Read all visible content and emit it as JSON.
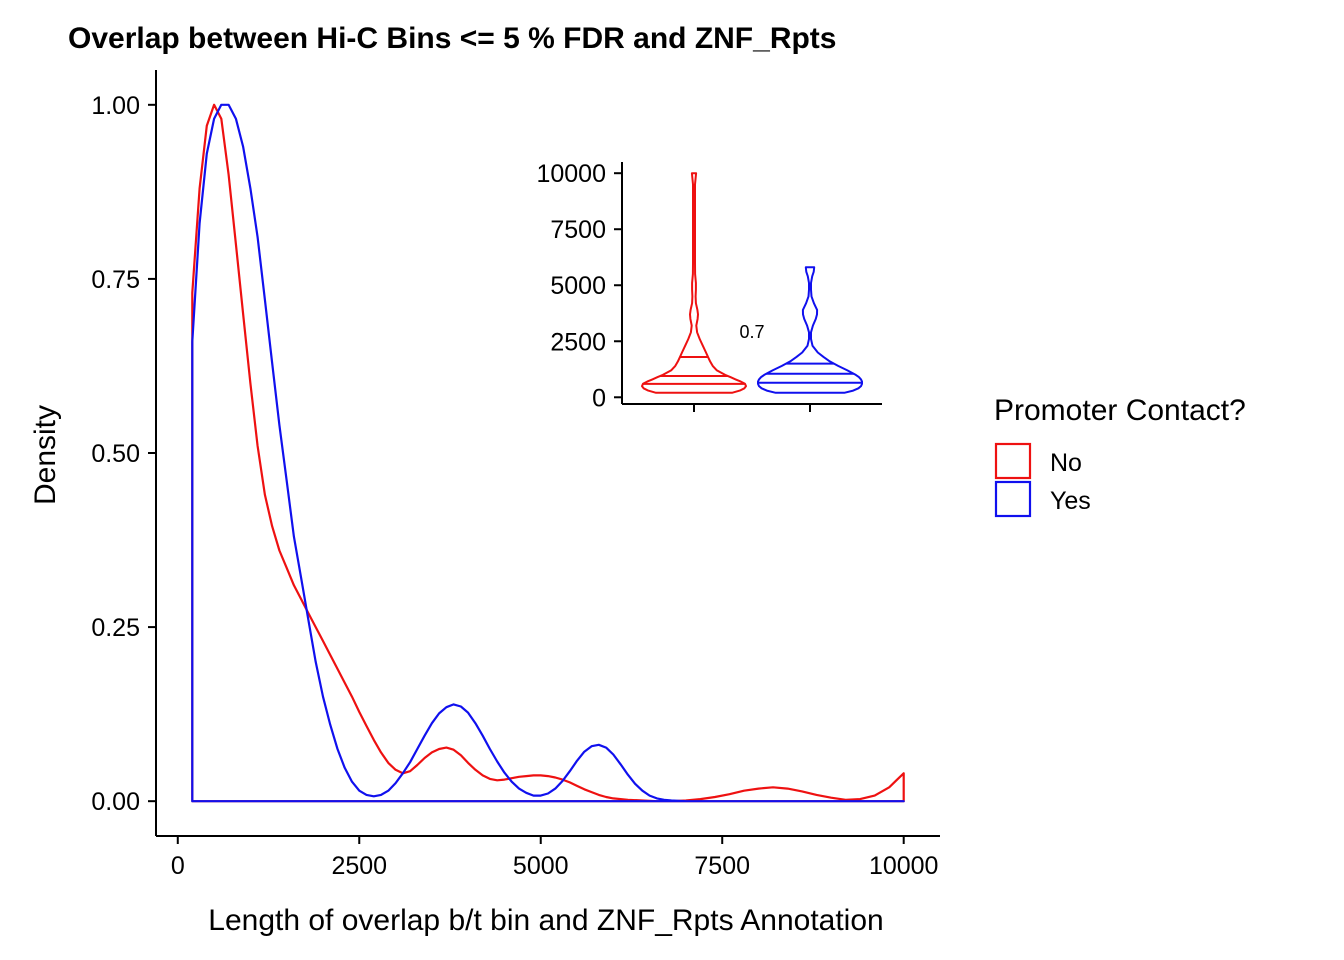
{
  "chart_data": [
    {
      "type": "area",
      "title": "Overlap between Hi-C Bins <= 5 % FDR and ZNF_Rpts",
      "xlabel": "Length of overlap b/t bin and ZNF_Rpts Annotation",
      "ylabel": "Density",
      "xlim": [
        -300,
        10500
      ],
      "ylim": [
        -0.05,
        1.05
      ],
      "x_ticks": [
        0,
        2500,
        5000,
        7500,
        10000
      ],
      "x_tick_labels": [
        "0",
        "2500",
        "5000",
        "7500",
        "10000"
      ],
      "y_ticks": [
        0,
        0.25,
        0.5,
        0.75,
        1.0
      ],
      "y_tick_labels": [
        "0.00",
        "0.25",
        "0.50",
        "0.75",
        "1.00"
      ],
      "grid": false,
      "series": [
        {
          "name": "No",
          "color": "#ee1111",
          "x": [
            200,
            300,
            400,
            500,
            600,
            700,
            800,
            900,
            1000,
            1100,
            1200,
            1300,
            1400,
            1500,
            1600,
            1700,
            1800,
            1900,
            2000,
            2100,
            2200,
            2300,
            2400,
            2500,
            2600,
            2700,
            2800,
            2900,
            3000,
            3100,
            3200,
            3300,
            3400,
            3500,
            3600,
            3700,
            3800,
            3900,
            4000,
            4100,
            4200,
            4300,
            4400,
            4500,
            4600,
            4700,
            4800,
            4900,
            5000,
            5100,
            5200,
            5300,
            5400,
            5500,
            5600,
            5700,
            5800,
            5900,
            6000,
            6200,
            6400,
            6600,
            6800,
            7000,
            7200,
            7400,
            7600,
            7800,
            8000,
            8200,
            8400,
            8600,
            8800,
            9000,
            9200,
            9400,
            9600,
            9800,
            9900,
            10000
          ],
          "y": [
            0.73,
            0.88,
            0.97,
            1.0,
            0.98,
            0.9,
            0.8,
            0.7,
            0.6,
            0.51,
            0.44,
            0.395,
            0.36,
            0.335,
            0.31,
            0.29,
            0.27,
            0.25,
            0.23,
            0.21,
            0.19,
            0.17,
            0.15,
            0.128,
            0.108,
            0.088,
            0.07,
            0.055,
            0.045,
            0.04,
            0.043,
            0.052,
            0.062,
            0.07,
            0.075,
            0.077,
            0.074,
            0.066,
            0.055,
            0.045,
            0.037,
            0.032,
            0.03,
            0.031,
            0.033,
            0.035,
            0.036,
            0.037,
            0.037,
            0.036,
            0.034,
            0.031,
            0.027,
            0.022,
            0.017,
            0.013,
            0.009,
            0.006,
            0.004,
            0.002,
            0.001,
            0.0,
            0.0,
            0.001,
            0.003,
            0.006,
            0.01,
            0.015,
            0.018,
            0.02,
            0.018,
            0.014,
            0.009,
            0.005,
            0.002,
            0.003,
            0.008,
            0.02,
            0.03,
            0.04
          ]
        },
        {
          "name": "Yes",
          "color": "#1010ee",
          "x": [
            200,
            300,
            400,
            500,
            600,
            700,
            800,
            900,
            1000,
            1100,
            1200,
            1300,
            1400,
            1500,
            1600,
            1700,
            1800,
            1900,
            2000,
            2100,
            2200,
            2300,
            2400,
            2500,
            2600,
            2700,
            2800,
            2900,
            3000,
            3100,
            3200,
            3300,
            3400,
            3500,
            3600,
            3700,
            3800,
            3900,
            4000,
            4100,
            4200,
            4300,
            4400,
            4500,
            4600,
            4700,
            4800,
            4900,
            5000,
            5100,
            5200,
            5300,
            5400,
            5500,
            5600,
            5700,
            5800,
            5900,
            6000,
            6100,
            6200,
            6300,
            6400,
            6500,
            6600,
            6700,
            6800,
            7000,
            7500,
            8000,
            8500,
            9000,
            9500,
            10000
          ],
          "y": [
            0.66,
            0.83,
            0.93,
            0.98,
            1.0,
            1.0,
            0.98,
            0.94,
            0.88,
            0.81,
            0.72,
            0.63,
            0.54,
            0.46,
            0.38,
            0.32,
            0.26,
            0.2,
            0.15,
            0.11,
            0.075,
            0.048,
            0.028,
            0.015,
            0.009,
            0.007,
            0.009,
            0.015,
            0.026,
            0.04,
            0.056,
            0.075,
            0.094,
            0.112,
            0.126,
            0.135,
            0.139,
            0.136,
            0.127,
            0.112,
            0.094,
            0.075,
            0.057,
            0.041,
            0.028,
            0.018,
            0.012,
            0.008,
            0.008,
            0.011,
            0.018,
            0.029,
            0.043,
            0.058,
            0.071,
            0.079,
            0.081,
            0.077,
            0.067,
            0.053,
            0.038,
            0.025,
            0.015,
            0.008,
            0.004,
            0.002,
            0.001,
            0.0,
            0.0,
            0.0,
            0.0,
            0.0,
            0.0,
            0.0
          ]
        }
      ],
      "legend": {
        "title": "Promoter Contact?",
        "position": "right",
        "entries": [
          {
            "label": "No",
            "color": "#ee1111"
          },
          {
            "label": "Yes",
            "color": "#1010ee"
          }
        ]
      }
    },
    {
      "type": "violin",
      "ylim": [
        -300,
        10500
      ],
      "y_ticks": [
        0,
        2500,
        5000,
        7500,
        10000
      ],
      "y_tick_labels": [
        "0",
        "2500",
        "5000",
        "7500",
        "10000"
      ],
      "annotation": "0.7",
      "grid": false,
      "series": [
        {
          "name": "No",
          "color": "#ee1111",
          "quantiles": [
            600,
            950,
            1800
          ],
          "min": 200,
          "max": 10000,
          "profile_y": [
            200,
            300,
            400,
            500,
            600,
            700,
            800,
            900,
            1000,
            1200,
            1400,
            1600,
            1800,
            2000,
            2300,
            2600,
            2900,
            3200,
            3500,
            3700,
            3900,
            4200,
            4500,
            4800,
            5100,
            5500,
            6000,
            6500,
            7000,
            7500,
            8000,
            8200,
            8500,
            9000,
            9500,
            10000
          ],
          "profile_w": [
            0.73,
            0.88,
            0.97,
            1.0,
            0.98,
            0.9,
            0.8,
            0.7,
            0.6,
            0.44,
            0.36,
            0.31,
            0.27,
            0.23,
            0.17,
            0.11,
            0.06,
            0.045,
            0.07,
            0.077,
            0.066,
            0.037,
            0.031,
            0.036,
            0.036,
            0.022,
            0.004,
            0.002,
            0.002,
            0.006,
            0.015,
            0.02,
            0.016,
            0.005,
            0.008,
            0.04
          ]
        },
        {
          "name": "Yes",
          "color": "#1010ee",
          "quantiles": [
            650,
            1050,
            1500
          ],
          "min": 200,
          "max": 5800,
          "profile_y": [
            200,
            300,
            400,
            500,
            600,
            700,
            800,
            900,
            1000,
            1200,
            1400,
            1600,
            1800,
            2000,
            2300,
            2600,
            2900,
            3200,
            3500,
            3700,
            3900,
            4200,
            4500,
            4800,
            5100,
            5400,
            5600,
            5800
          ],
          "profile_w": [
            0.66,
            0.83,
            0.93,
            0.98,
            1.0,
            1.0,
            0.98,
            0.94,
            0.88,
            0.72,
            0.54,
            0.38,
            0.26,
            0.15,
            0.048,
            0.009,
            0.015,
            0.056,
            0.112,
            0.135,
            0.136,
            0.075,
            0.028,
            0.008,
            0.011,
            0.043,
            0.071,
            0.081
          ]
        }
      ]
    }
  ]
}
